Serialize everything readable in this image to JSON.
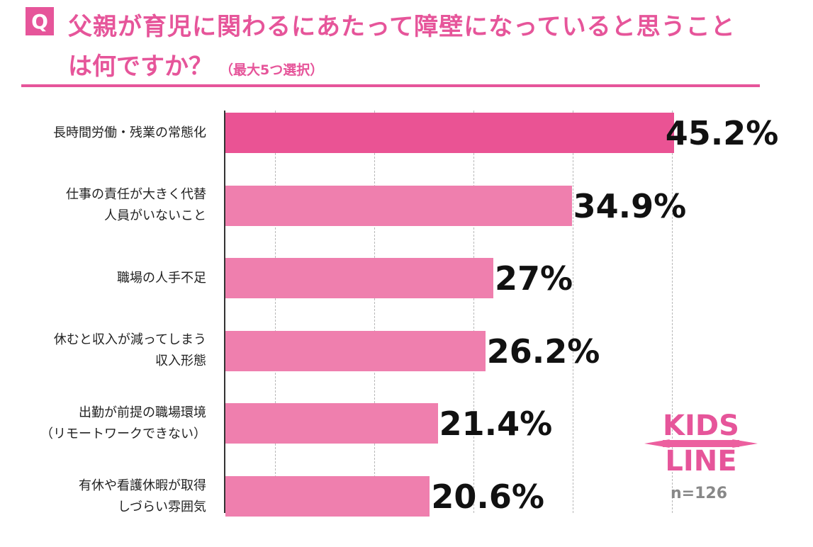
{
  "question": {
    "badge": "Q",
    "line1": "父親が育児に関わるにあたって障壁になっていると思うこと",
    "line2": "は何ですか？",
    "note": "（最大5つ選択）"
  },
  "sample_note": "n=126",
  "logo": {
    "text_top": "KIDS",
    "text_bottom": "LINE"
  },
  "colors": {
    "accent": "#e6559a",
    "bar_top": "#ea5394",
    "bar": "#ef7fae"
  },
  "chart_data": {
    "type": "bar",
    "orientation": "horizontal",
    "categories": [
      [
        "長時間労働・残業の常態化"
      ],
      [
        "仕事の責任が大きく代替",
        "人員がいないこと"
      ],
      [
        "職場の人手不足"
      ],
      [
        "休むと収入が減ってしまう",
        "収入形態"
      ],
      [
        "出勤が前提の職場環境",
        "（リモートワークできない）"
      ],
      [
        "有休や看護休暇が取得",
        "しづらい雰囲気"
      ]
    ],
    "values": [
      45.2,
      34.9,
      27,
      26.2,
      21.4,
      20.6
    ],
    "value_labels": [
      "45.2%",
      "34.9%",
      "27%",
      "26.2%",
      "21.4%",
      "20.6%"
    ],
    "xlim": [
      0,
      45
    ],
    "grid": true
  }
}
